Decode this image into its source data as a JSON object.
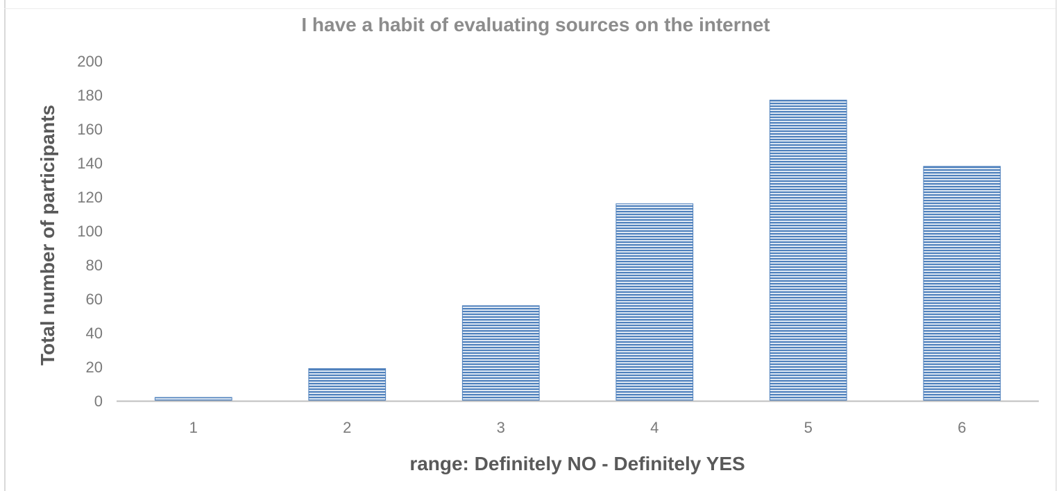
{
  "chart_data": {
    "type": "bar",
    "title": "I have a habit of evaluating sources on the internet",
    "xlabel": "range: Definitely NO - Definitely YES",
    "ylabel": "Total number of participants",
    "categories": [
      "1",
      "2",
      "3",
      "4",
      "5",
      "6"
    ],
    "values": [
      2,
      19,
      56,
      116,
      177,
      138
    ],
    "ylim": [
      0,
      200
    ],
    "yticks": [
      "0",
      "20",
      "40",
      "60",
      "80",
      "100",
      "120",
      "140",
      "160",
      "180",
      "200"
    ],
    "grid": false,
    "legend": "none",
    "bar_color": "#4f81bd",
    "bar_pattern": "horizontal-stripes"
  }
}
